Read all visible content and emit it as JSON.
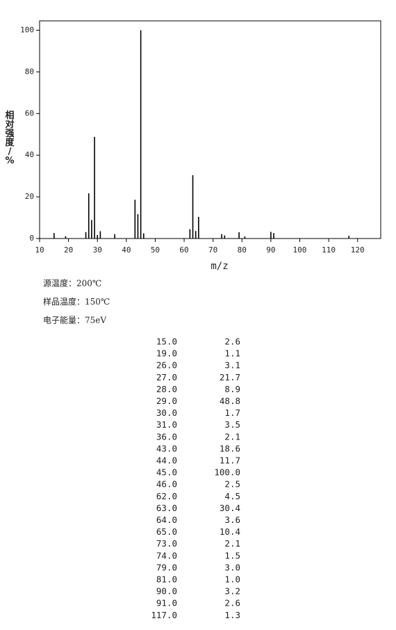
{
  "chart_data": {
    "type": "bar",
    "y_label": "相对强度/%",
    "x_label": "m/z",
    "x": [
      15,
      19,
      26,
      27,
      28,
      29,
      30,
      31,
      36,
      43,
      44,
      45,
      46,
      62,
      63,
      64,
      65,
      73,
      74,
      79,
      81,
      90,
      91,
      117
    ],
    "values": [
      2.6,
      1.1,
      3.1,
      21.7,
      8.9,
      48.8,
      1.7,
      3.5,
      2.1,
      18.6,
      11.7,
      100.0,
      2.5,
      4.5,
      30.4,
      3.6,
      10.4,
      2.1,
      1.5,
      3.0,
      1.0,
      3.2,
      2.6,
      1.3
    ],
    "color": "#000000",
    "xlim": [
      10,
      128
    ],
    "xticks": [
      10,
      20,
      30,
      40,
      50,
      60,
      70,
      80,
      90,
      100,
      110,
      120
    ],
    "ylim": [
      0,
      104.5
    ],
    "yticks": [
      0,
      20,
      40,
      60,
      80,
      100
    ]
  },
  "notes": [
    "源温度：200℃",
    "样品温度：150℃",
    "电子能量：75eV"
  ],
  "table": {
    "rows": [
      [
        "15.0",
        "2.6"
      ],
      [
        "19.0",
        "1.1"
      ],
      [
        "26.0",
        "3.1"
      ],
      [
        "27.0",
        "21.7"
      ],
      [
        "28.0",
        "8.9"
      ],
      [
        "29.0",
        "48.8"
      ],
      [
        "30.0",
        "1.7"
      ],
      [
        "31.0",
        "3.5"
      ],
      [
        "36.0",
        "2.1"
      ],
      [
        "43.0",
        "18.6"
      ],
      [
        "44.0",
        "11.7"
      ],
      [
        "45.0",
        "100.0"
      ],
      [
        "46.0",
        "2.5"
      ],
      [
        "62.0",
        "4.5"
      ],
      [
        "63.0",
        "30.4"
      ],
      [
        "64.0",
        "3.6"
      ],
      [
        "65.0",
        "10.4"
      ],
      [
        "73.0",
        "2.1"
      ],
      [
        "74.0",
        "1.5"
      ],
      [
        "79.0",
        "3.0"
      ],
      [
        "81.0",
        "1.0"
      ],
      [
        "90.0",
        "3.2"
      ],
      [
        "91.0",
        "2.6"
      ],
      [
        "117.0",
        "1.3"
      ]
    ]
  }
}
